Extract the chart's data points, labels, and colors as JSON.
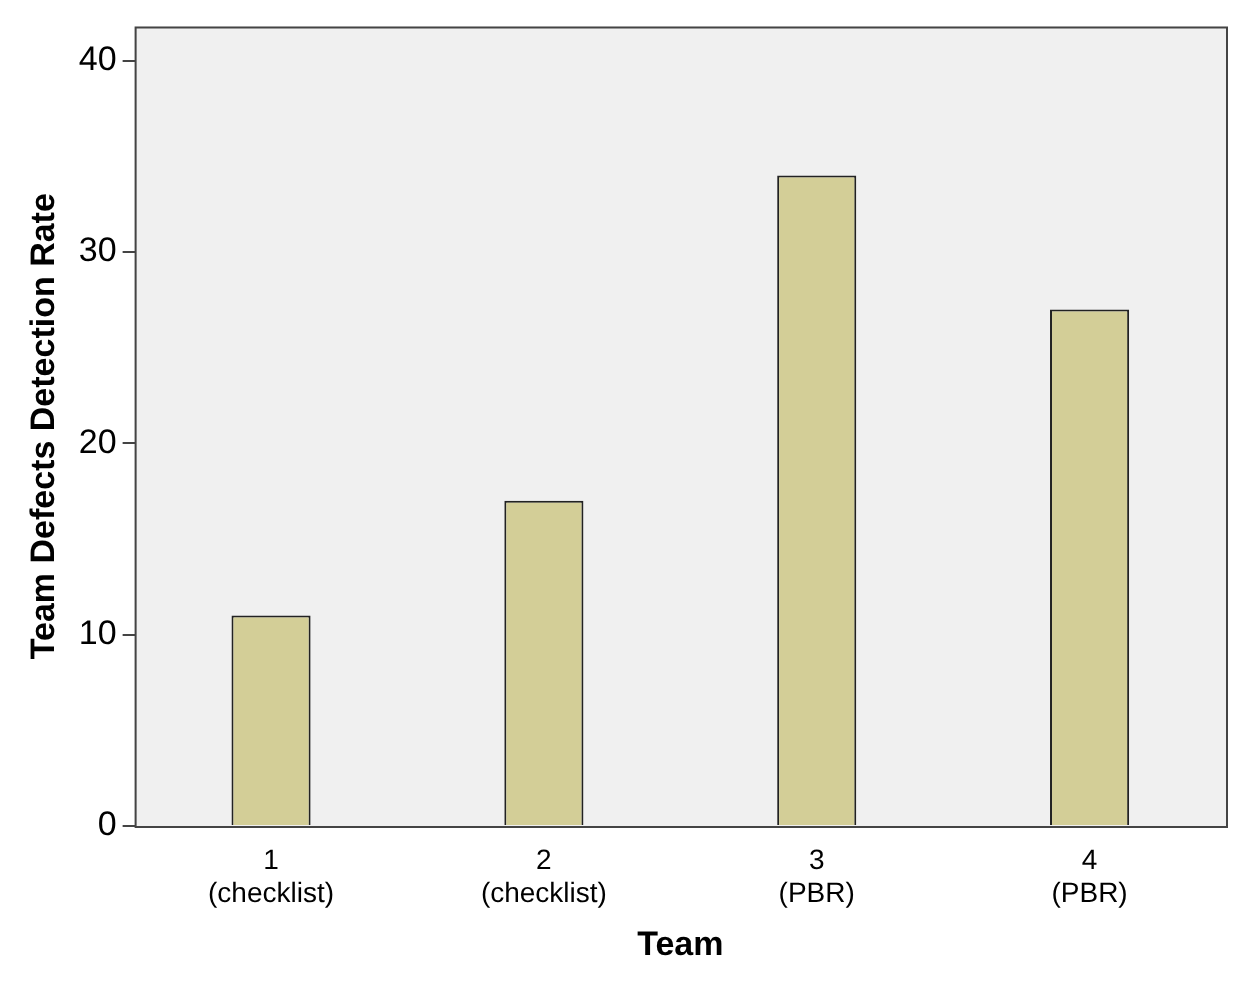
{
  "chart_data": {
    "type": "bar",
    "xlabel": "Team",
    "ylabel": "Team Defects Detection Rate",
    "categories": [
      "1\n(checklist)",
      "2\n(checklist)",
      "3\n(PBR)",
      "4\n(PBR)"
    ],
    "values": [
      11,
      17,
      34,
      27
    ],
    "color": "#d3ce97",
    "ylim": [
      0,
      41.8
    ],
    "yticks": [
      0,
      10,
      20,
      30,
      40
    ],
    "grid": false,
    "legend": false
  }
}
